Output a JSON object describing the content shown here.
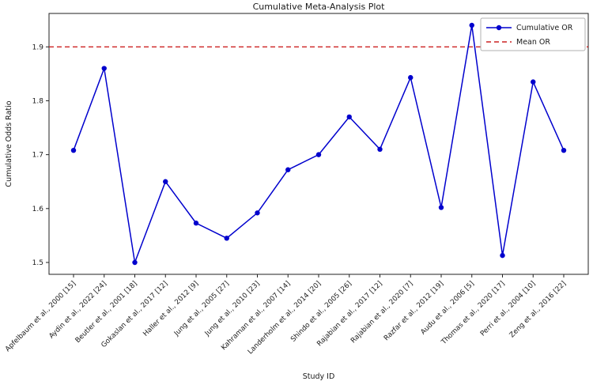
{
  "chart_data": {
    "type": "line",
    "title": "Cumulative Meta-Analysis Plot",
    "xlabel": "Study ID",
    "ylabel": "Cumulative Odds Ratio",
    "categories": [
      "Apfelbaum et al., 2000 [15]",
      "Aydin et al., 2022 [24]",
      "Beutler et al., 2001 [18]",
      "Gokaslan et al., 2017 [12]",
      "Haller et al., 2012 [9]",
      "Jung et al., 2005 [27]",
      "Jung et al., 2010 [23]",
      "Kahraman et al., 2007 [14]",
      "Landerholm et al., 2014 [20]",
      "Shindo et al., 2005 [26]",
      "Rajabian et al., 2017 [12]",
      "Rajabian et al., 2020 [7]",
      "Razfar et al., 2012 [19]",
      "Audu et al., 2006 [5]",
      "Thomas et al., 2020 [17]",
      "Perri et al., 2004 [10]",
      "Zeng et al., 2016 [22]"
    ],
    "series": [
      {
        "name": "Cumulative OR",
        "values": [
          1.708,
          1.86,
          1.5,
          1.65,
          1.573,
          1.545,
          1.592,
          1.672,
          1.7,
          1.77,
          1.71,
          1.843,
          1.602,
          1.94,
          1.513,
          1.835,
          1.708
        ]
      }
    ],
    "reference_line": {
      "name": "Mean OR",
      "value": 1.9
    },
    "yticks": [
      1.5,
      1.6,
      1.7,
      1.8,
      1.9
    ],
    "ylim": [
      1.478,
      1.962
    ],
    "legend_position": "upper right",
    "grid": false,
    "colors": {
      "line": "#0000cd",
      "marker": "#0000cd",
      "mean_line": "#cc2222",
      "axis": "#222222",
      "legend_border": "#b0b0b0",
      "background": "#ffffff"
    }
  }
}
